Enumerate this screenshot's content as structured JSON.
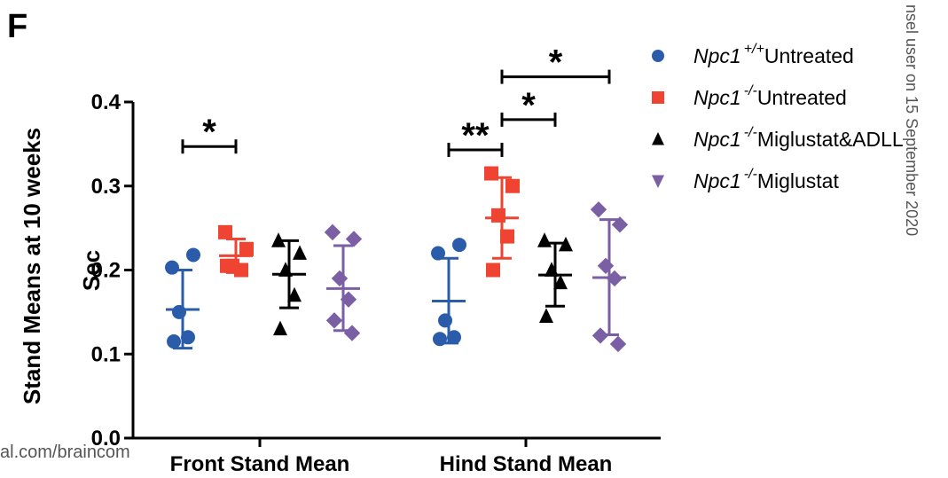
{
  "panel_label": "F",
  "watermark_left": "al.com/braincom",
  "watermark_right": "nsel user on 15 September 2020",
  "chart_data": {
    "type": "scatter",
    "ylabel_line1": "Stand Means at 10 weeks",
    "ylabel_line2": "Sec",
    "ylim": [
      0,
      0.4
    ],
    "yticks": [
      "0.0",
      "0.1",
      "0.2",
      "0.3",
      "0.4"
    ],
    "ytick_values": [
      0,
      0.1,
      0.2,
      0.3,
      0.4
    ],
    "categories": [
      "Front Stand Mean",
      "Hind Stand Mean"
    ],
    "legend_position": "top-right",
    "series": [
      {
        "gene": "Npc1",
        "genotype": "+/+",
        "treatment": "Untreated",
        "color": "#2a5caa",
        "marker": "circle",
        "front": {
          "values": [
            0.203,
            0.218,
            0.15,
            0.12,
            0.115
          ],
          "mean": 0.153,
          "sd_upper": 0.2,
          "sd_lower": 0.107
        },
        "hind": {
          "values": [
            0.22,
            0.23,
            0.14,
            0.12,
            0.118
          ],
          "mean": 0.163,
          "sd_upper": 0.214,
          "sd_lower": 0.113
        }
      },
      {
        "gene": "Npc1",
        "genotype": "-/-",
        "treatment": "Untreated",
        "color": "#ee4431",
        "marker": "square",
        "front": {
          "values": [
            0.245,
            0.225,
            0.205,
            0.2,
            0.205
          ],
          "mean": 0.217,
          "sd_upper": 0.237,
          "sd_lower": 0.197
        },
        "hind": {
          "values": [
            0.315,
            0.3,
            0.265,
            0.24,
            0.2
          ],
          "mean": 0.262,
          "sd_upper": 0.31,
          "sd_lower": 0.214
        }
      },
      {
        "gene": "Npc1",
        "genotype": "-/-",
        "treatment": "Miglustat&ADLL",
        "color": "#000000",
        "marker": "triangle-up",
        "front": {
          "values": [
            0.235,
            0.22,
            0.2,
            0.17,
            0.13
          ],
          "mean": 0.195,
          "sd_upper": 0.235,
          "sd_lower": 0.155
        },
        "hind": {
          "values": [
            0.235,
            0.23,
            0.2,
            0.185,
            0.145
          ],
          "mean": 0.194,
          "sd_upper": 0.232,
          "sd_lower": 0.157
        }
      },
      {
        "gene": "Npc1",
        "genotype": "-/-",
        "treatment": "Miglustat",
        "color": "#7b5fa5",
        "marker": "diamond",
        "front": {
          "values": [
            0.245,
            0.237,
            0.19,
            0.165,
            0.14,
            0.125
          ],
          "mean": 0.178,
          "sd_upper": 0.229,
          "sd_lower": 0.128
        },
        "hind": {
          "values": [
            0.272,
            0.254,
            0.205,
            0.19,
            0.122,
            0.112
          ],
          "mean": 0.191,
          "sd_upper": 0.26,
          "sd_lower": 0.123
        }
      }
    ],
    "significance": [
      {
        "category": "Front Stand Mean",
        "from": 0,
        "to": 1,
        "label": "*",
        "level": 0.347
      },
      {
        "category": "Hind Stand Mean",
        "from": 0,
        "to": 1,
        "label": "**",
        "level": 0.343
      },
      {
        "category": "Hind Stand Mean",
        "from": 1,
        "to": 2,
        "label": "*",
        "level": 0.379
      },
      {
        "category": "Hind Stand Mean",
        "from": 1,
        "to": 3,
        "label": "*",
        "level": 0.43
      }
    ]
  }
}
